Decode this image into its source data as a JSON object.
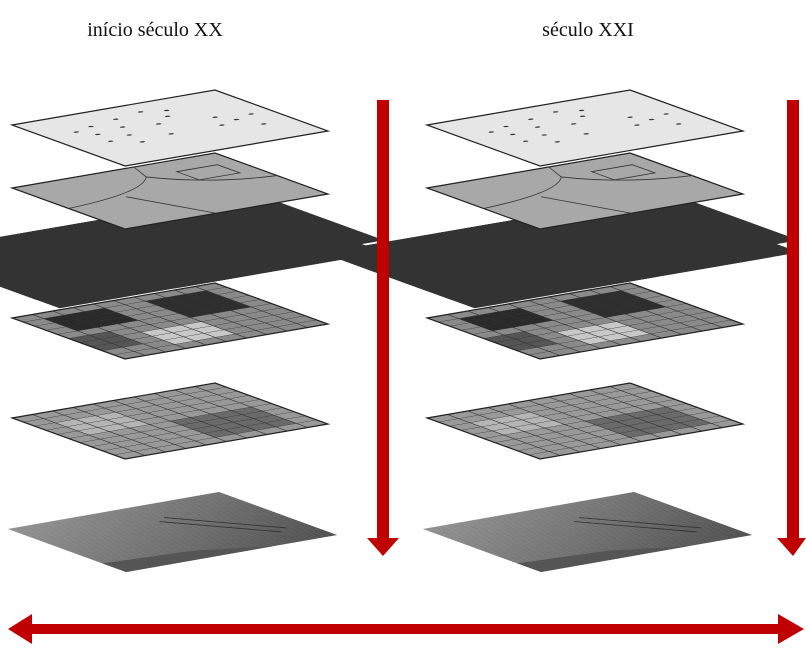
{
  "columns": [
    {
      "title": "início século XX"
    },
    {
      "title": "século XXI"
    }
  ]
}
